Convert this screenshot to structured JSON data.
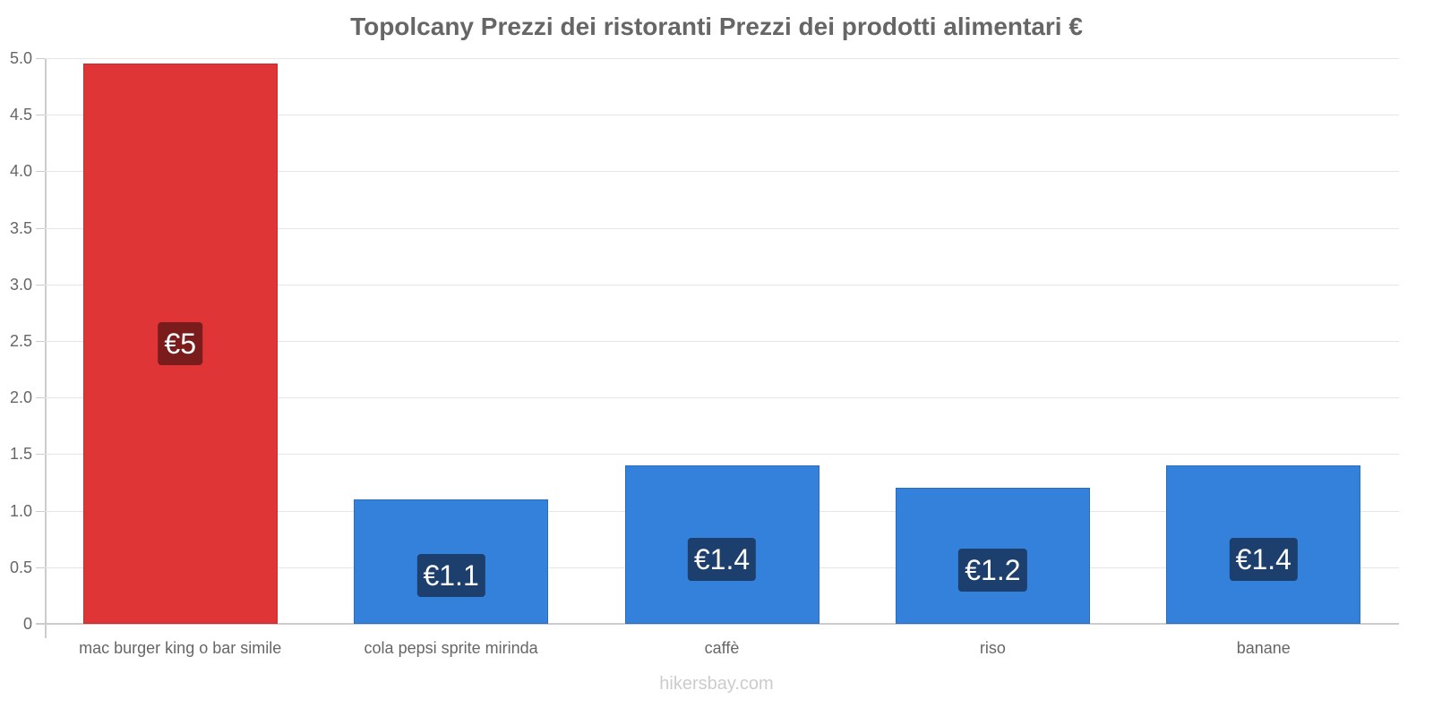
{
  "chart_data": {
    "type": "bar",
    "title": "Topolcany Prezzi dei ristoranti Prezzi dei prodotti alimentari €",
    "xlabel": "",
    "ylabel": "",
    "ylim": [
      0,
      5.0
    ],
    "yticks": [
      "0",
      "0.5",
      "1.0",
      "1.5",
      "2.0",
      "2.5",
      "3.0",
      "3.5",
      "4.0",
      "4.5",
      "5.0"
    ],
    "grid": true,
    "legend": null,
    "categories": [
      "mac burger king o bar simile",
      "cola pepsi sprite mirinda",
      "caffè",
      "riso",
      "banane"
    ],
    "values": [
      4.95,
      1.1,
      1.4,
      1.2,
      1.4
    ],
    "data_labels": [
      "€5",
      "€1.1",
      "€1.4",
      "€1.2",
      "€1.4"
    ],
    "colors": [
      "#e03537",
      "#3481dc",
      "#3481dc",
      "#3481dc",
      "#3481dc"
    ],
    "label_bg_colors": [
      "#7a1c1c",
      "#1c3f6e",
      "#1c3f6e",
      "#1c3f6e",
      "#1c3f6e"
    ]
  },
  "footer": {
    "watermark": "hikersbay.com"
  }
}
